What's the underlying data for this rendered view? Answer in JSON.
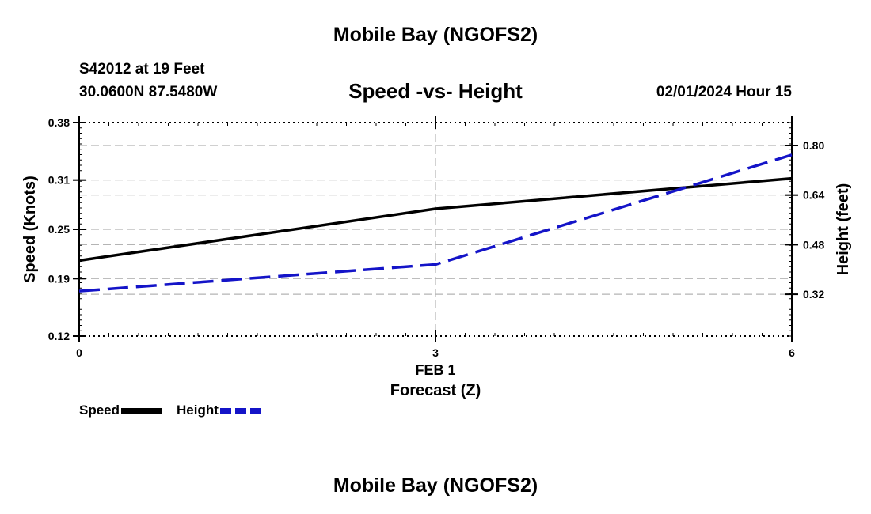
{
  "chart_data": {
    "type": "line",
    "title": "Mobile Bay (NGOFS2)",
    "subtitle": "Speed -vs- Height",
    "station": "S42012 at 19 Feet",
    "location": "30.0600N  87.5480W",
    "datetime": "02/01/2024 Hour 15",
    "xlabel": "Forecast (Z)",
    "x_date_label": "FEB 1",
    "x_ticks": [
      0,
      3,
      6
    ],
    "x_tick_labels": [
      "0",
      "3",
      "6"
    ],
    "xlim": [
      0,
      6
    ],
    "ylabel_left": "Speed (Knots)",
    "ylim_left": [
      0.12,
      0.38
    ],
    "y_ticks_left": [
      0.12,
      0.19,
      0.25,
      0.31,
      0.38
    ],
    "y_tick_labels_left": [
      "0.12",
      "0.19",
      "0.25",
      "0.31",
      "0.38"
    ],
    "ylabel_right": "Height (feet)",
    "ylim_right": [
      0.185,
      0.874
    ],
    "y_ticks_right": [
      0.32,
      0.48,
      0.64,
      0.8
    ],
    "y_tick_labels_right": [
      "0.32",
      "0.48",
      "0.64",
      "0.80"
    ],
    "grid": true,
    "series": [
      {
        "name": "Speed",
        "axis": "left",
        "color": "#000000",
        "style": "solid",
        "x": [
          0,
          3,
          6
        ],
        "values": [
          0.212,
          0.275,
          0.312
        ]
      },
      {
        "name": "Height",
        "axis": "right",
        "color": "#1414c8",
        "style": "dashed",
        "x": [
          0,
          3,
          6
        ],
        "values": [
          0.33,
          0.416,
          0.77
        ]
      }
    ]
  },
  "footer": {
    "title": "Mobile Bay (NGOFS2)"
  }
}
